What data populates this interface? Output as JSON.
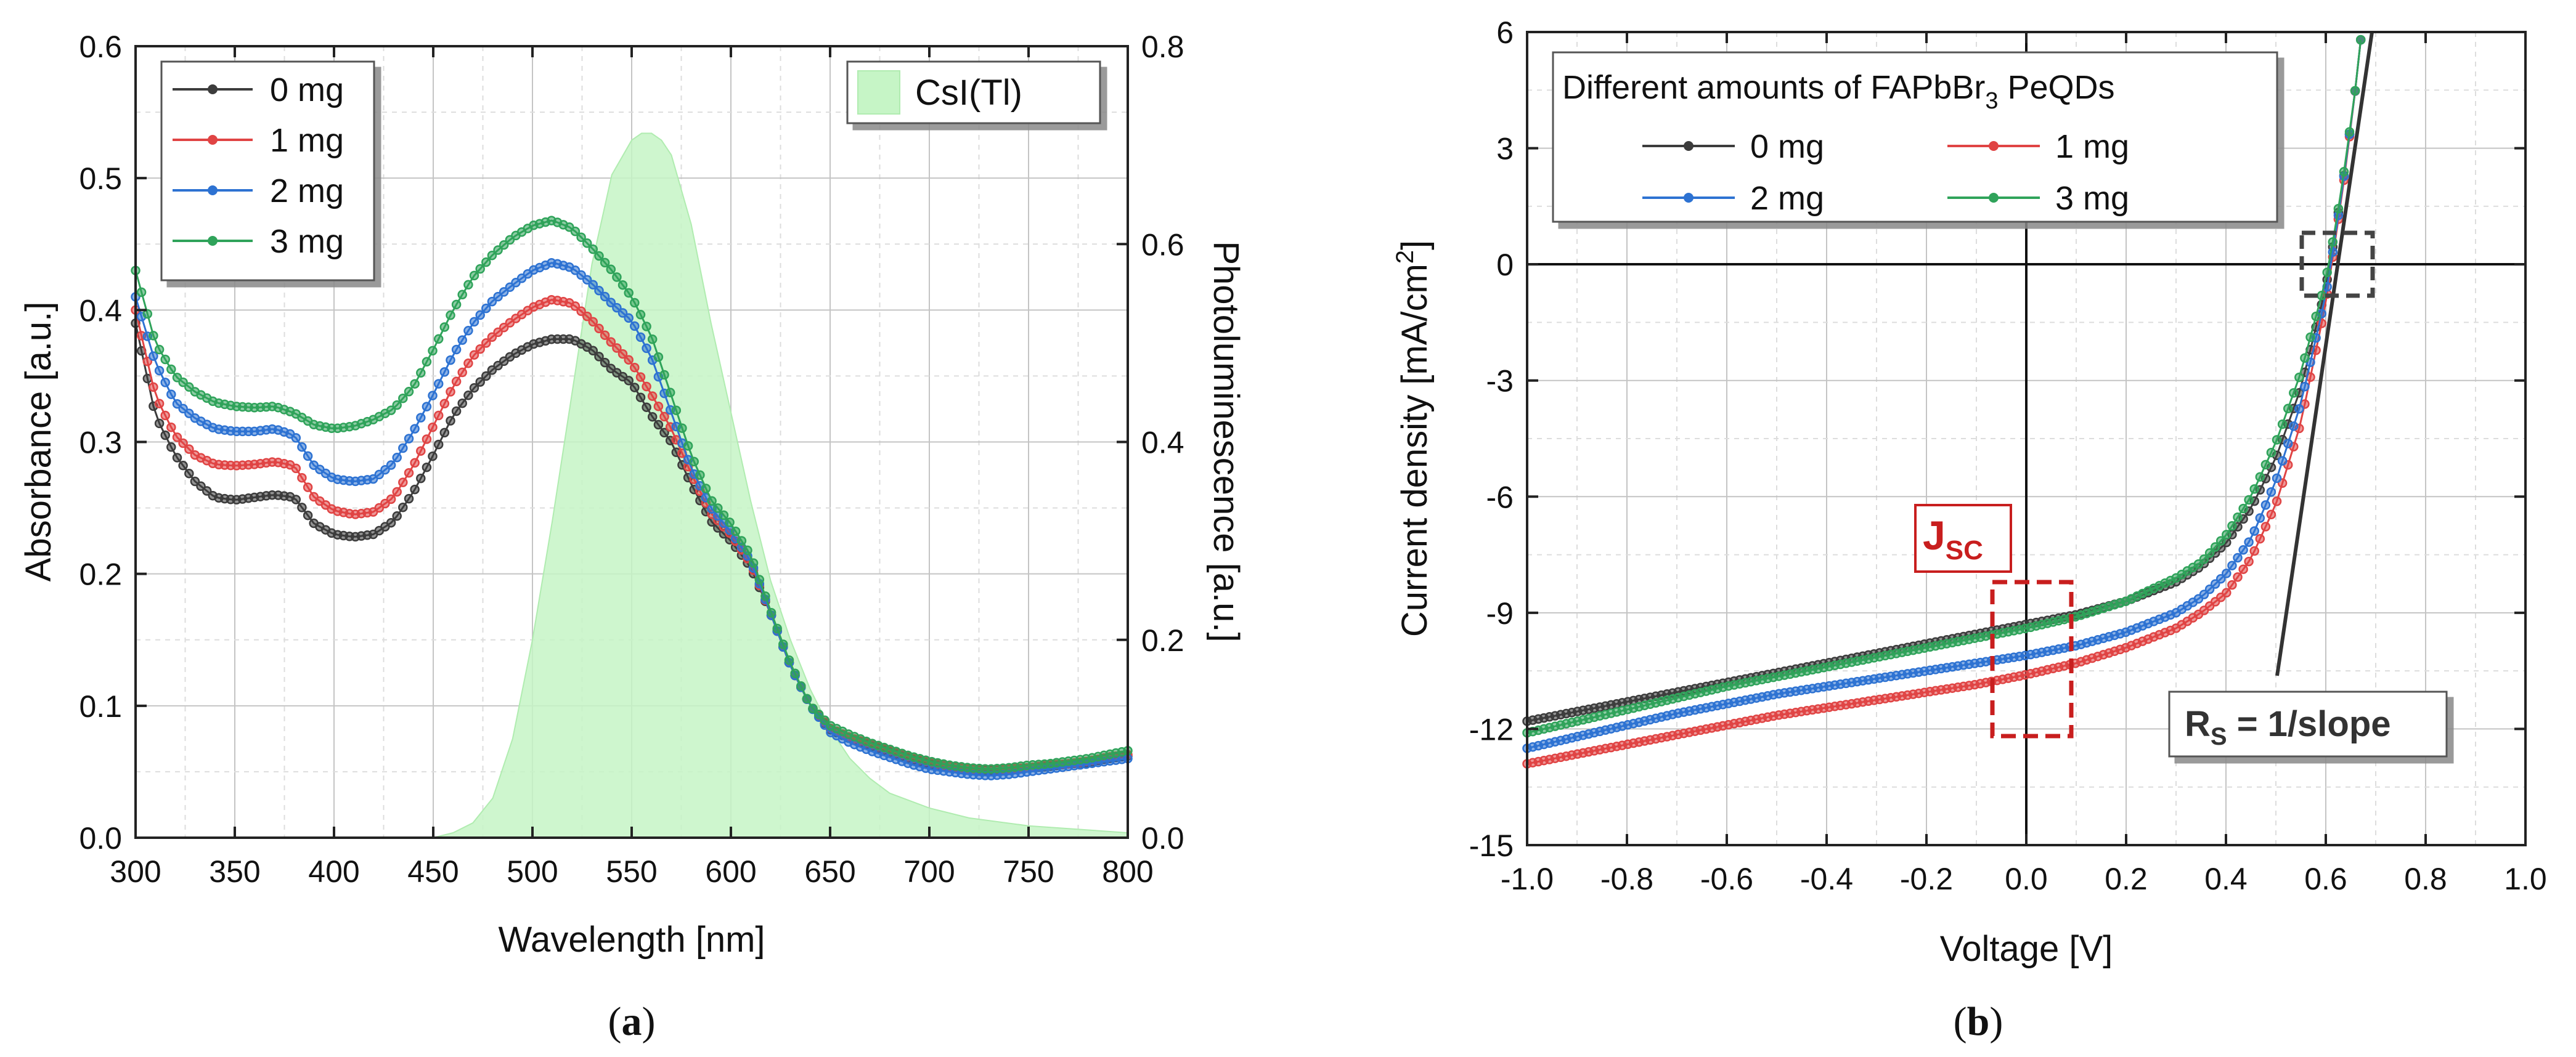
{
  "panels": {
    "a": {
      "caption_open": "(",
      "caption_letter": "a",
      "caption_close": ")",
      "chart_data": {
        "type": "line",
        "title": "",
        "xlabel": "Wavelength [nm]",
        "ylabel": "Absorbance [a.u.]",
        "y2label": "Photoluminescence [a.u.]",
        "xlim": [
          300,
          800
        ],
        "ylim": [
          0,
          0.6
        ],
        "y2lim": [
          0,
          0.8
        ],
        "xticks": [
          "300",
          "350",
          "400",
          "450",
          "500",
          "550",
          "600",
          "650",
          "700",
          "750",
          "800"
        ],
        "yticks": [
          "0.0",
          "0.1",
          "0.2",
          "0.3",
          "0.4",
          "0.5",
          "0.6"
        ],
        "y2ticks": [
          "0.0",
          "0.2",
          "0.4",
          "0.6",
          "0.8"
        ],
        "grid": true,
        "legend_position": "top-left",
        "series": [
          {
            "name": "0 mg",
            "color": "#3c3c3c",
            "x": [
              300,
              310,
              320,
              330,
              340,
              350,
              360,
              370,
              380,
              390,
              400,
              410,
              420,
              430,
              440,
              450,
              460,
              470,
              480,
              490,
              500,
              510,
              520,
              530,
              540,
              550,
              560,
              570,
              580,
              590,
              600,
              610,
              620,
              630,
              640,
              650,
              660,
              670,
              680,
              690,
              700,
              710,
              720,
              730,
              740,
              750,
              760,
              770,
              780,
              790,
              800
            ],
            "values": [
              0.39,
              0.32,
              0.29,
              0.27,
              0.258,
              0.256,
              0.258,
              0.26,
              0.258,
              0.238,
              0.23,
              0.228,
              0.23,
              0.24,
              0.262,
              0.29,
              0.32,
              0.34,
              0.355,
              0.366,
              0.374,
              0.378,
              0.378,
              0.37,
              0.355,
              0.345,
              0.32,
              0.3,
              0.268,
              0.24,
              0.225,
              0.205,
              0.17,
              0.13,
              0.1,
              0.082,
              0.075,
              0.07,
              0.065,
              0.06,
              0.056,
              0.054,
              0.052,
              0.051,
              0.052,
              0.053,
              0.054,
              0.056,
              0.057,
              0.06,
              0.062
            ]
          },
          {
            "name": "1 mg",
            "color": "#e04444",
            "x": [
              300,
              310,
              320,
              330,
              340,
              350,
              360,
              370,
              380,
              390,
              400,
              410,
              420,
              430,
              440,
              450,
              460,
              470,
              480,
              490,
              500,
              510,
              520,
              530,
              540,
              550,
              560,
              570,
              580,
              590,
              600,
              610,
              620,
              630,
              640,
              650,
              660,
              670,
              680,
              690,
              700,
              710,
              720,
              730,
              740,
              750,
              760,
              770,
              780,
              790,
              800
            ],
            "values": [
              0.4,
              0.335,
              0.305,
              0.29,
              0.283,
              0.282,
              0.283,
              0.285,
              0.282,
              0.258,
              0.248,
              0.245,
              0.247,
              0.258,
              0.282,
              0.312,
              0.342,
              0.365,
              0.38,
              0.392,
              0.402,
              0.408,
              0.405,
              0.392,
              0.375,
              0.36,
              0.336,
              0.31,
              0.276,
              0.246,
              0.23,
              0.208,
              0.17,
              0.13,
              0.1,
              0.083,
              0.076,
              0.071,
              0.066,
              0.061,
              0.057,
              0.054,
              0.052,
              0.052,
              0.052,
              0.053,
              0.055,
              0.056,
              0.058,
              0.061,
              0.063
            ]
          },
          {
            "name": "2 mg",
            "color": "#2d72d2",
            "x": [
              300,
              310,
              320,
              330,
              340,
              350,
              360,
              370,
              380,
              390,
              400,
              410,
              420,
              430,
              440,
              450,
              460,
              470,
              480,
              490,
              500,
              510,
              520,
              530,
              540,
              550,
              560,
              570,
              580,
              590,
              600,
              610,
              620,
              630,
              640,
              650,
              660,
              670,
              680,
              690,
              700,
              710,
              720,
              730,
              740,
              750,
              760,
              770,
              780,
              790,
              800
            ],
            "values": [
              0.41,
              0.36,
              0.33,
              0.318,
              0.31,
              0.308,
              0.308,
              0.31,
              0.305,
              0.282,
              0.272,
              0.27,
              0.272,
              0.284,
              0.308,
              0.336,
              0.366,
              0.39,
              0.407,
              0.419,
              0.43,
              0.436,
              0.432,
              0.42,
              0.405,
              0.392,
              0.364,
              0.322,
              0.28,
              0.25,
              0.232,
              0.21,
              0.17,
              0.13,
              0.1,
              0.08,
              0.072,
              0.066,
              0.061,
              0.056,
              0.052,
              0.05,
              0.048,
              0.047,
              0.048,
              0.05,
              0.052,
              0.054,
              0.056,
              0.058,
              0.06
            ]
          },
          {
            "name": "3 mg",
            "color": "#2fa35a",
            "x": [
              300,
              310,
              320,
              330,
              340,
              350,
              360,
              370,
              380,
              390,
              400,
              410,
              420,
              430,
              440,
              450,
              460,
              470,
              480,
              490,
              500,
              510,
              520,
              530,
              540,
              550,
              560,
              570,
              580,
              590,
              600,
              610,
              620,
              630,
              640,
              650,
              660,
              670,
              680,
              690,
              700,
              710,
              720,
              730,
              740,
              750,
              760,
              770,
              780,
              790,
              800
            ],
            "values": [
              0.43,
              0.375,
              0.35,
              0.338,
              0.33,
              0.327,
              0.326,
              0.327,
              0.322,
              0.313,
              0.31,
              0.312,
              0.317,
              0.325,
              0.342,
              0.37,
              0.4,
              0.425,
              0.442,
              0.455,
              0.464,
              0.468,
              0.462,
              0.447,
              0.43,
              0.41,
              0.38,
              0.335,
              0.29,
              0.256,
              0.238,
              0.214,
              0.172,
              0.132,
              0.1,
              0.085,
              0.078,
              0.072,
              0.067,
              0.062,
              0.058,
              0.055,
              0.053,
              0.052,
              0.053,
              0.055,
              0.056,
              0.058,
              0.06,
              0.063,
              0.066
            ]
          },
          {
            "name": "CsI(Tl)",
            "type": "area",
            "axis": "right",
            "color": "#c6f5c6",
            "x": [
              450,
              460,
              470,
              480,
              490,
              500,
              510,
              520,
              530,
              540,
              550,
              555,
              560,
              565,
              570,
              580,
              590,
              600,
              610,
              620,
              630,
              640,
              650,
              660,
              670,
              680,
              700,
              720,
              750,
              800
            ],
            "values": [
              0.0,
              0.005,
              0.015,
              0.04,
              0.1,
              0.2,
              0.32,
              0.45,
              0.58,
              0.67,
              0.705,
              0.712,
              0.712,
              0.705,
              0.69,
              0.62,
              0.52,
              0.43,
              0.34,
              0.26,
              0.2,
              0.15,
              0.11,
              0.08,
              0.06,
              0.045,
              0.03,
              0.02,
              0.012,
              0.005
            ]
          }
        ]
      }
    },
    "b": {
      "caption_open": "(",
      "caption_letter": "b",
      "caption_close": ")",
      "chart_data": {
        "type": "line",
        "title": "",
        "xlabel": "Voltage [V]",
        "ylabel": "Current density [mA/cm",
        "ylabel_sup": "2",
        "ylabel_close": "]",
        "xlim": [
          -1.0,
          1.0
        ],
        "ylim": [
          -15,
          6
        ],
        "xticks": [
          "-1.0",
          "-0.8",
          "-0.6",
          "-0.4",
          "-0.2",
          "0.0",
          "0.2",
          "0.4",
          "0.6",
          "0.8",
          "1.0"
        ],
        "yticks": [
          "-15",
          "-12",
          "-9",
          "-6",
          "-3",
          "0",
          "3",
          "6"
        ],
        "grid": true,
        "legend_title_pre": "Different amounts of FAPbBr",
        "legend_title_sub": "3",
        "legend_title_post": " PeQDs",
        "legend_position": "top-left",
        "series": [
          {
            "name": "0 mg",
            "color": "#3c3c3c",
            "x": [
              -1.0,
              -0.9,
              -0.8,
              -0.7,
              -0.6,
              -0.5,
              -0.4,
              -0.3,
              -0.2,
              -0.1,
              0.0,
              0.1,
              0.2,
              0.3,
              0.35,
              0.4,
              0.45,
              0.5,
              0.55,
              0.6,
              0.62,
              0.64,
              0.66,
              0.67
            ],
            "values": [
              -11.8,
              -11.55,
              -11.3,
              -11.05,
              -10.8,
              -10.55,
              -10.3,
              -10.05,
              -9.8,
              -9.55,
              -9.3,
              -9.05,
              -8.7,
              -8.2,
              -7.8,
              -7.2,
              -6.3,
              -5.0,
              -3.2,
              -0.6,
              0.9,
              2.6,
              4.6,
              5.8
            ]
          },
          {
            "name": "1 mg",
            "color": "#e04444",
            "x": [
              -1.0,
              -0.9,
              -0.8,
              -0.7,
              -0.6,
              -0.5,
              -0.4,
              -0.3,
              -0.2,
              -0.1,
              0.0,
              0.1,
              0.2,
              0.3,
              0.35,
              0.4,
              0.45,
              0.5,
              0.55,
              0.6,
              0.62,
              0.64,
              0.66,
              0.67
            ],
            "values": [
              -12.9,
              -12.65,
              -12.4,
              -12.15,
              -11.9,
              -11.65,
              -11.45,
              -11.25,
              -11.05,
              -10.85,
              -10.6,
              -10.3,
              -9.9,
              -9.4,
              -9.0,
              -8.5,
              -7.6,
              -6.2,
              -4.1,
              -1.0,
              0.7,
              2.5,
              4.6,
              5.8
            ]
          },
          {
            "name": "2 mg",
            "color": "#2d72d2",
            "x": [
              -1.0,
              -0.9,
              -0.8,
              -0.7,
              -0.6,
              -0.5,
              -0.4,
              -0.3,
              -0.2,
              -0.1,
              0.0,
              0.1,
              0.2,
              0.3,
              0.35,
              0.4,
              0.45,
              0.5,
              0.55,
              0.6,
              0.62,
              0.64,
              0.66,
              0.67
            ],
            "values": [
              -12.5,
              -12.2,
              -11.9,
              -11.6,
              -11.35,
              -11.1,
              -10.9,
              -10.7,
              -10.5,
              -10.3,
              -10.1,
              -9.85,
              -9.5,
              -9.0,
              -8.6,
              -8.0,
              -7.1,
              -5.6,
              -3.6,
              -0.8,
              0.8,
              2.6,
              4.6,
              5.8
            ]
          },
          {
            "name": "3 mg",
            "color": "#2fa35a",
            "x": [
              -1.0,
              -0.9,
              -0.8,
              -0.7,
              -0.6,
              -0.5,
              -0.4,
              -0.3,
              -0.2,
              -0.1,
              0.0,
              0.1,
              0.2,
              0.3,
              0.35,
              0.4,
              0.45,
              0.5,
              0.55,
              0.6,
              0.62,
              0.64,
              0.66,
              0.67
            ],
            "values": [
              -12.1,
              -11.8,
              -11.5,
              -11.2,
              -10.9,
              -10.65,
              -10.4,
              -10.15,
              -9.9,
              -9.65,
              -9.4,
              -9.1,
              -8.7,
              -8.1,
              -7.7,
              -7.0,
              -6.0,
              -4.6,
              -2.8,
              -0.4,
              1.0,
              2.7,
              4.6,
              5.8
            ]
          }
        ],
        "annotations": {
          "jsc_main": "J",
          "jsc_sub": "SC",
          "rs_main": "R",
          "rs_sub": "S",
          "rs_tail": " = 1/slope"
        }
      }
    }
  }
}
